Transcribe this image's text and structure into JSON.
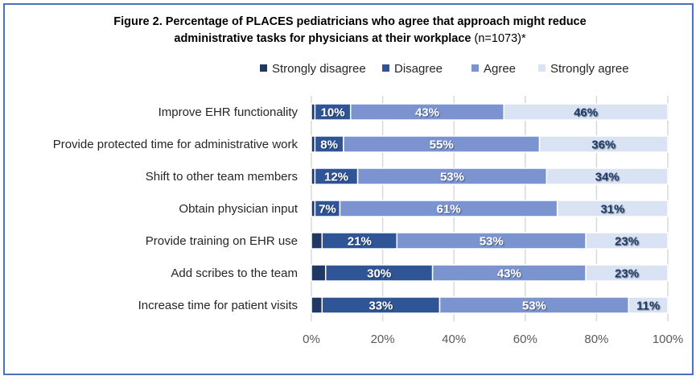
{
  "chart_data": {
    "type": "bar",
    "stacked": true,
    "orientation": "horizontal",
    "title_line1": "Figure 2. Percentage of PLACES pediatricians who agree that approach might reduce",
    "title_line2": "administrative tasks for physicians at their workplace",
    "title_n": "(n=1073)*",
    "categories": [
      "Improve EHR functionality",
      "Provide protected time for administrative work",
      "Shift to other team members",
      "Obtain physician input",
      "Provide training on EHR use",
      "Add scribes to the team",
      "Increase time for patient visits"
    ],
    "series": [
      {
        "name": "Strongly disagree",
        "color": "#1f3864",
        "label_color": "#ffffff",
        "show_labels": false,
        "values": [
          1,
          1,
          1,
          1,
          3,
          4,
          3
        ]
      },
      {
        "name": "Disagree",
        "color": "#2f5597",
        "label_color": "#ffffff",
        "show_labels": true,
        "values": [
          10,
          8,
          12,
          7,
          21,
          30,
          33
        ]
      },
      {
        "name": "Agree",
        "color": "#7b93cf",
        "label_color": "#ffffff",
        "show_labels": true,
        "values": [
          43,
          55,
          53,
          61,
          53,
          43,
          53
        ]
      },
      {
        "name": "Strongly agree",
        "color": "#dae3f3",
        "label_color": "#1f3d6b",
        "show_labels": true,
        "values": [
          46,
          36,
          34,
          31,
          23,
          23,
          11
        ]
      }
    ],
    "x_ticks": [
      "0%",
      "20%",
      "40%",
      "60%",
      "80%",
      "100%"
    ],
    "xlim": [
      0,
      100
    ],
    "grid": true,
    "legend_position": "top-right"
  }
}
